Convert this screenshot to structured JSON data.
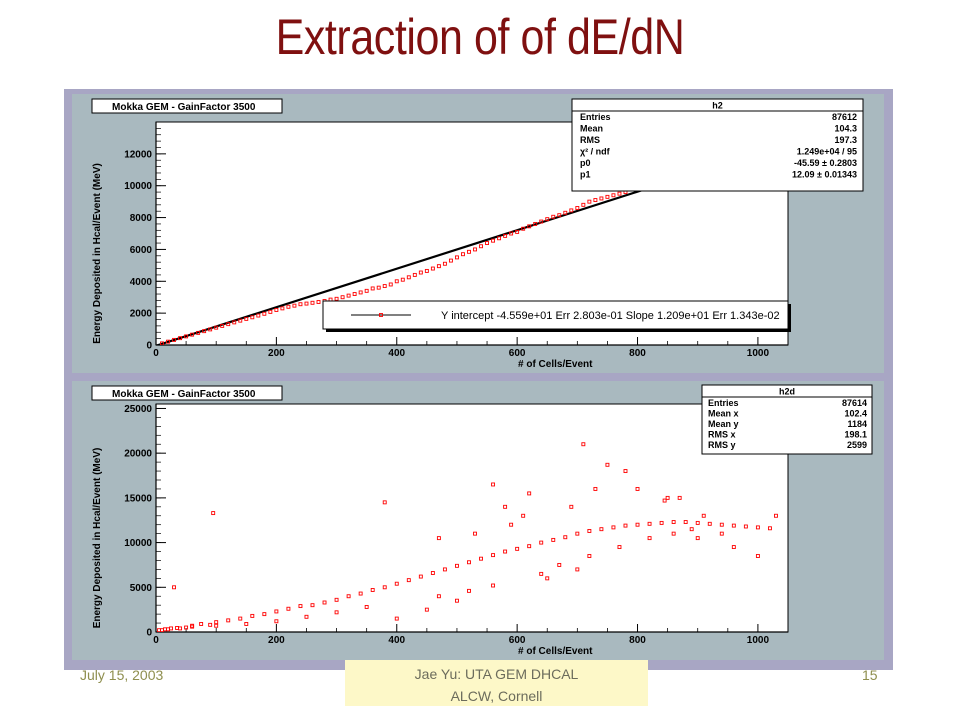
{
  "slide": {
    "title": "Extraction of of dE/dN",
    "footer_date": "July 15, 2003",
    "footer_center_line1": "Jae Yu: UTA GEM DHCAL",
    "footer_center_line2": "ALCW, Cornell",
    "footer_page": "15"
  },
  "colors": {
    "title": "#7f1010",
    "frame": "#a8a6c4",
    "canvas": "#a9b9bf",
    "markers": "#ff0000",
    "fit_line": "#000000"
  },
  "chart_data": [
    {
      "type": "scatter",
      "title": "Mokka GEM - GainFactor 3500",
      "xlabel": "# of Cells/Event",
      "ylabel": "Energy Deposited in Hcal/Event (MeV)",
      "xlim": [
        0,
        1050
      ],
      "ylim": [
        0,
        14000
      ],
      "x_ticks": [
        0,
        200,
        400,
        600,
        800,
        1000
      ],
      "y_ticks": [
        0,
        2000,
        4000,
        6000,
        8000,
        10000,
        12000
      ],
      "stats_box": {
        "title": "h2",
        "rows": [
          {
            "label": "Entries",
            "value": "87612"
          },
          {
            "label": "Mean",
            "value": "104.3"
          },
          {
            "label": "RMS",
            "value": "197.3"
          },
          {
            "label": "χ² / ndf",
            "value": "1.249e+04 / 95"
          },
          {
            "label": "p0",
            "value": "-45.59 ± 0.2803"
          },
          {
            "label": "p1",
            "value": "12.09 ± 0.01343"
          }
        ]
      },
      "fit": {
        "intercept": -45.59,
        "slope": 12.09,
        "x_range": [
          0,
          1050
        ]
      },
      "legend": {
        "label": "Y intercept -4.559e+01 Err  2.803e-01 Slope  1.209e+01 Err  1.343e-02",
        "position": "bottom-right"
      },
      "series": [
        {
          "x": [
            10,
            20,
            30,
            40,
            50,
            60,
            70,
            80,
            90,
            100,
            110,
            120,
            130,
            140,
            150,
            160,
            170,
            180,
            190,
            200,
            210,
            220,
            230,
            240,
            250,
            260,
            270,
            280,
            290,
            300,
            310,
            320,
            330,
            340,
            350,
            360,
            370,
            380,
            390,
            400,
            410,
            420,
            430,
            440,
            450,
            460,
            470,
            480,
            490,
            500,
            510,
            520,
            530,
            540,
            550,
            560,
            570,
            580,
            590,
            600,
            610,
            620,
            630,
            640,
            650,
            660,
            670,
            680,
            690,
            700,
            710,
            720,
            730,
            740,
            750,
            760,
            770,
            780
          ],
          "y": [
            100,
            210,
            320,
            430,
            540,
            650,
            760,
            870,
            980,
            1090,
            1200,
            1310,
            1420,
            1530,
            1640,
            1740,
            1850,
            1960,
            2080,
            2200,
            2300,
            2400,
            2470,
            2560,
            2600,
            2650,
            2700,
            2760,
            2850,
            2900,
            3000,
            3100,
            3200,
            3300,
            3400,
            3550,
            3600,
            3700,
            3800,
            4000,
            4100,
            4250,
            4400,
            4550,
            4650,
            4800,
            4950,
            5100,
            5300,
            5500,
            5700,
            5850,
            6000,
            6200,
            6400,
            6550,
            6700,
            6850,
            7000,
            7100,
            7300,
            7450,
            7600,
            7750,
            7900,
            8050,
            8150,
            8300,
            8450,
            8600,
            8800,
            9000,
            9100,
            9200,
            9300,
            9400,
            9500,
            9600
          ]
        }
      ]
    },
    {
      "type": "scatter",
      "title": "Mokka GEM - GainFactor 3500",
      "xlabel": "# of Cells/Event",
      "ylabel": "Energy Deposited in Hcal/Event (MeV)",
      "xlim": [
        0,
        1050
      ],
      "ylim": [
        0,
        25500
      ],
      "x_ticks": [
        0,
        200,
        400,
        600,
        800,
        1000
      ],
      "y_ticks": [
        0,
        5000,
        10000,
        15000,
        20000,
        25000
      ],
      "stats_box": {
        "title": "h2d",
        "rows": [
          {
            "label": "Entries",
            "value": "87614"
          },
          {
            "label": "Mean x",
            "value": "102.4"
          },
          {
            "label": "Mean y",
            "value": "1184"
          },
          {
            "label": "RMS x",
            "value": "198.1"
          },
          {
            "label": "RMS y",
            "value": "2599"
          }
        ]
      },
      "series": [
        {
          "description_of_distribution": "",
          "x": [
            5,
            15,
            25,
            35,
            50,
            60,
            75,
            90,
            100,
            120,
            140,
            160,
            180,
            200,
            220,
            240,
            260,
            280,
            300,
            320,
            340,
            360,
            380,
            400,
            420,
            440,
            460,
            480,
            500,
            520,
            540,
            560,
            580,
            600,
            620,
            640,
            660,
            680,
            700,
            720,
            740,
            760,
            780,
            800,
            820,
            840,
            860,
            880,
            900,
            920,
            940,
            960,
            980,
            1000,
            1020,
            30,
            95,
            380,
            560,
            710,
            750,
            845,
            900,
            960,
            1000,
            1030,
            400,
            450,
            500,
            650,
            700,
            580,
            620,
            800,
            850,
            300,
            350,
            250,
            200,
            150,
            100,
            60,
            40,
            20,
            10,
            470,
            530,
            590,
            610,
            690,
            730,
            780,
            870,
            910,
            940,
            470,
            520,
            560,
            640,
            670,
            720,
            770,
            820,
            860,
            890
          ],
          "y": [
            200,
            300,
            400,
            450,
            500,
            700,
            900,
            800,
            1100,
            1300,
            1500,
            1800,
            2000,
            2300,
            2600,
            2900,
            3000,
            3300,
            3600,
            4000,
            4300,
            4700,
            5000,
            5400,
            5800,
            6200,
            6600,
            7000,
            7400,
            7800,
            8200,
            8600,
            9000,
            9300,
            9600,
            10000,
            10300,
            10600,
            11000,
            11300,
            11500,
            11700,
            11900,
            12000,
            12100,
            12200,
            12300,
            12300,
            12200,
            12100,
            12000,
            11900,
            11800,
            11700,
            11600,
            5000,
            13300,
            14500,
            16500,
            21000,
            18700,
            14700,
            10500,
            9500,
            8500,
            13000,
            1500,
            2500,
            3500,
            6000,
            7000,
            14000,
            15500,
            16000,
            15000,
            2200,
            2800,
            1700,
            1200,
            900,
            700,
            600,
            400,
            300,
            200,
            10500,
            11000,
            12000,
            13000,
            14000,
            16000,
            18000,
            15000,
            13000,
            11000,
            4000,
            4600,
            5200,
            6500,
            7500,
            8500,
            9500,
            10500,
            11000,
            11500
          ]
        }
      ]
    }
  ]
}
